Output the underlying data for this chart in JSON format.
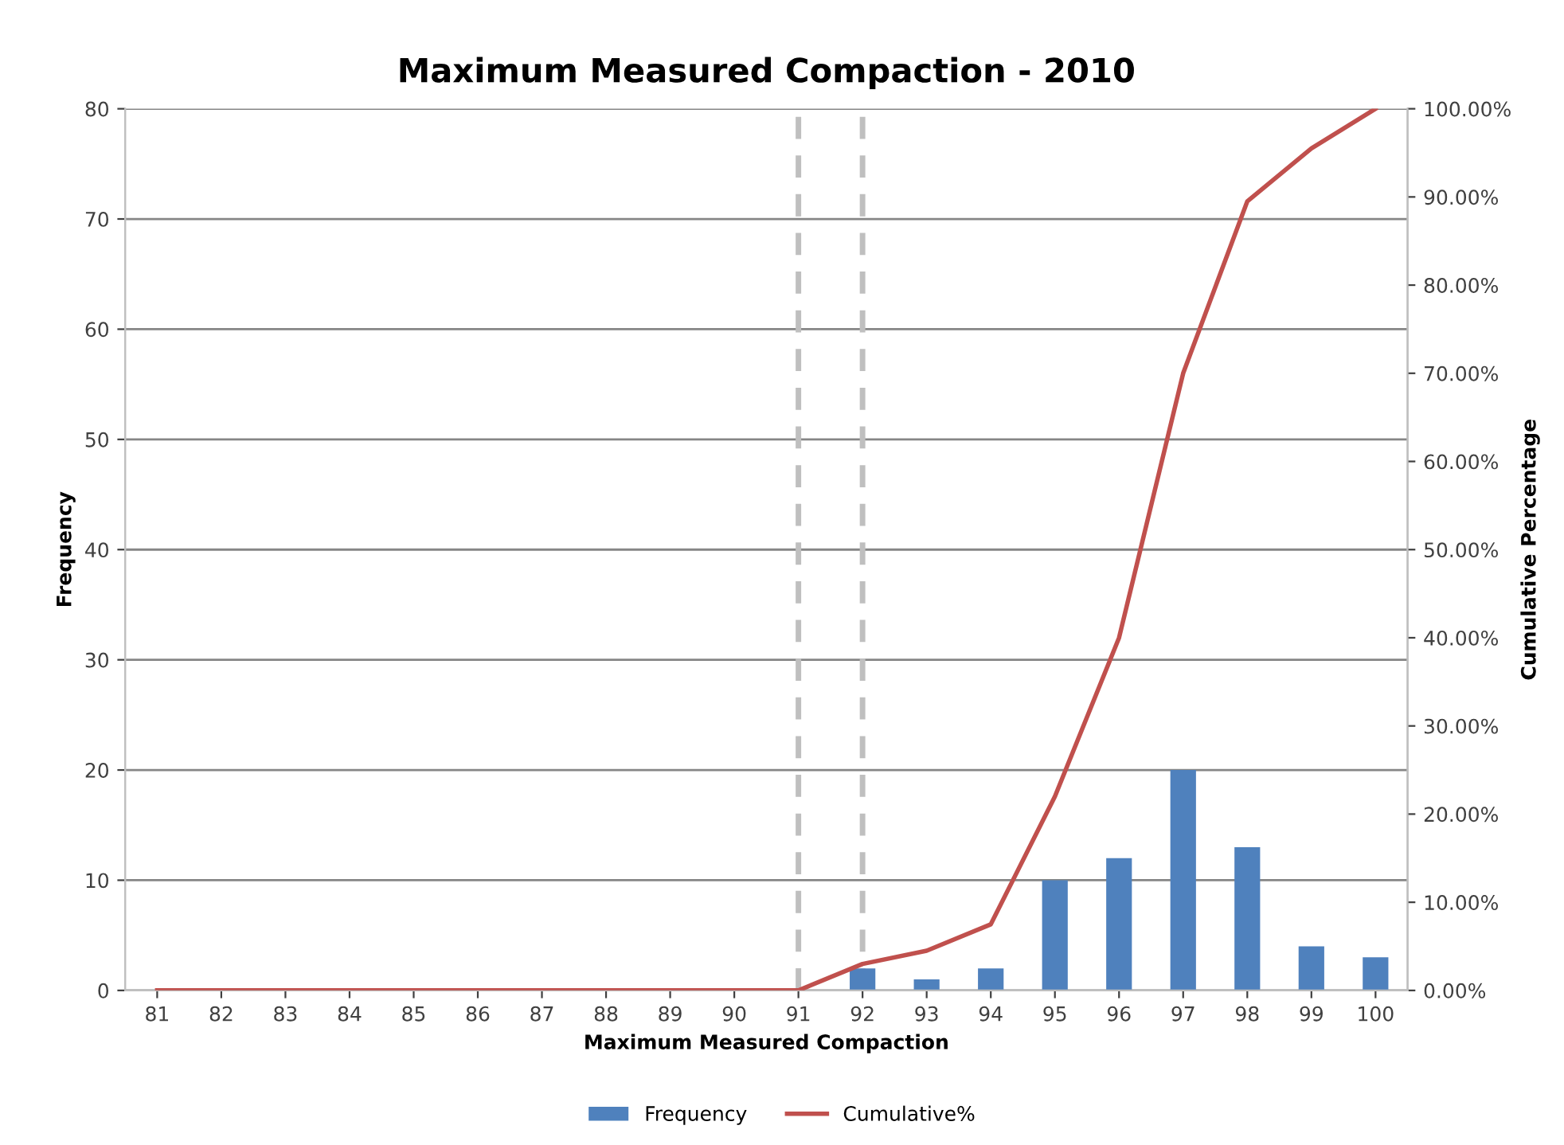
{
  "chart_data": {
    "type": "bar",
    "title": "Maximum Measured Compaction - 2010",
    "xlabel": "Maximum Measured Compaction",
    "ylabel": "Frequency",
    "y2label": "Cumulative Percentage",
    "categories": [
      "81",
      "82",
      "83",
      "84",
      "85",
      "86",
      "87",
      "88",
      "89",
      "90",
      "91",
      "92",
      "93",
      "94",
      "95",
      "96",
      "97",
      "98",
      "99",
      "100"
    ],
    "series": [
      {
        "name": "Frequency",
        "color": "#4f81bd",
        "values": [
          0,
          0,
          0,
          0,
          0,
          0,
          0,
          0,
          0,
          0,
          0,
          2,
          1,
          2,
          10,
          12,
          20,
          13,
          4,
          3
        ]
      },
      {
        "name": "Cumulative%",
        "type": "line",
        "axis": "y2",
        "color": "#c0504d",
        "values": [
          0,
          0,
          0,
          0,
          0,
          0,
          0,
          0,
          0,
          0,
          0,
          3,
          4.5,
          7.5,
          22,
          40,
          70,
          89.5,
          95.5,
          100
        ]
      }
    ],
    "ylim": [
      0,
      80
    ],
    "yticks": [
      0,
      10,
      20,
      30,
      40,
      50,
      60,
      70,
      80
    ],
    "y2lim": [
      0,
      100
    ],
    "y2ticks": [
      {
        "value": 0,
        "label": "0.00%"
      },
      {
        "value": 10,
        "label": "10.00%"
      },
      {
        "value": 20,
        "label": "20.00%"
      },
      {
        "value": 30,
        "label": "30.00%"
      },
      {
        "value": 40,
        "label": "40.00%"
      },
      {
        "value": 50,
        "label": "50.00%"
      },
      {
        "value": 60,
        "label": "60.00%"
      },
      {
        "value": 70,
        "label": "70.00%"
      },
      {
        "value": 80,
        "label": "80.00%"
      },
      {
        "value": 90,
        "label": "90.00%"
      },
      {
        "value": 100,
        "label": "100.00%"
      }
    ],
    "ref_lines": [
      {
        "axis": "x",
        "value": "91",
        "color": "#bfbfbf",
        "line_style": "dashed"
      },
      {
        "axis": "x",
        "value": "92",
        "color": "#bfbfbf",
        "line_style": "dashed"
      }
    ],
    "grid": "y",
    "legend": "bottom",
    "marker": "none"
  }
}
